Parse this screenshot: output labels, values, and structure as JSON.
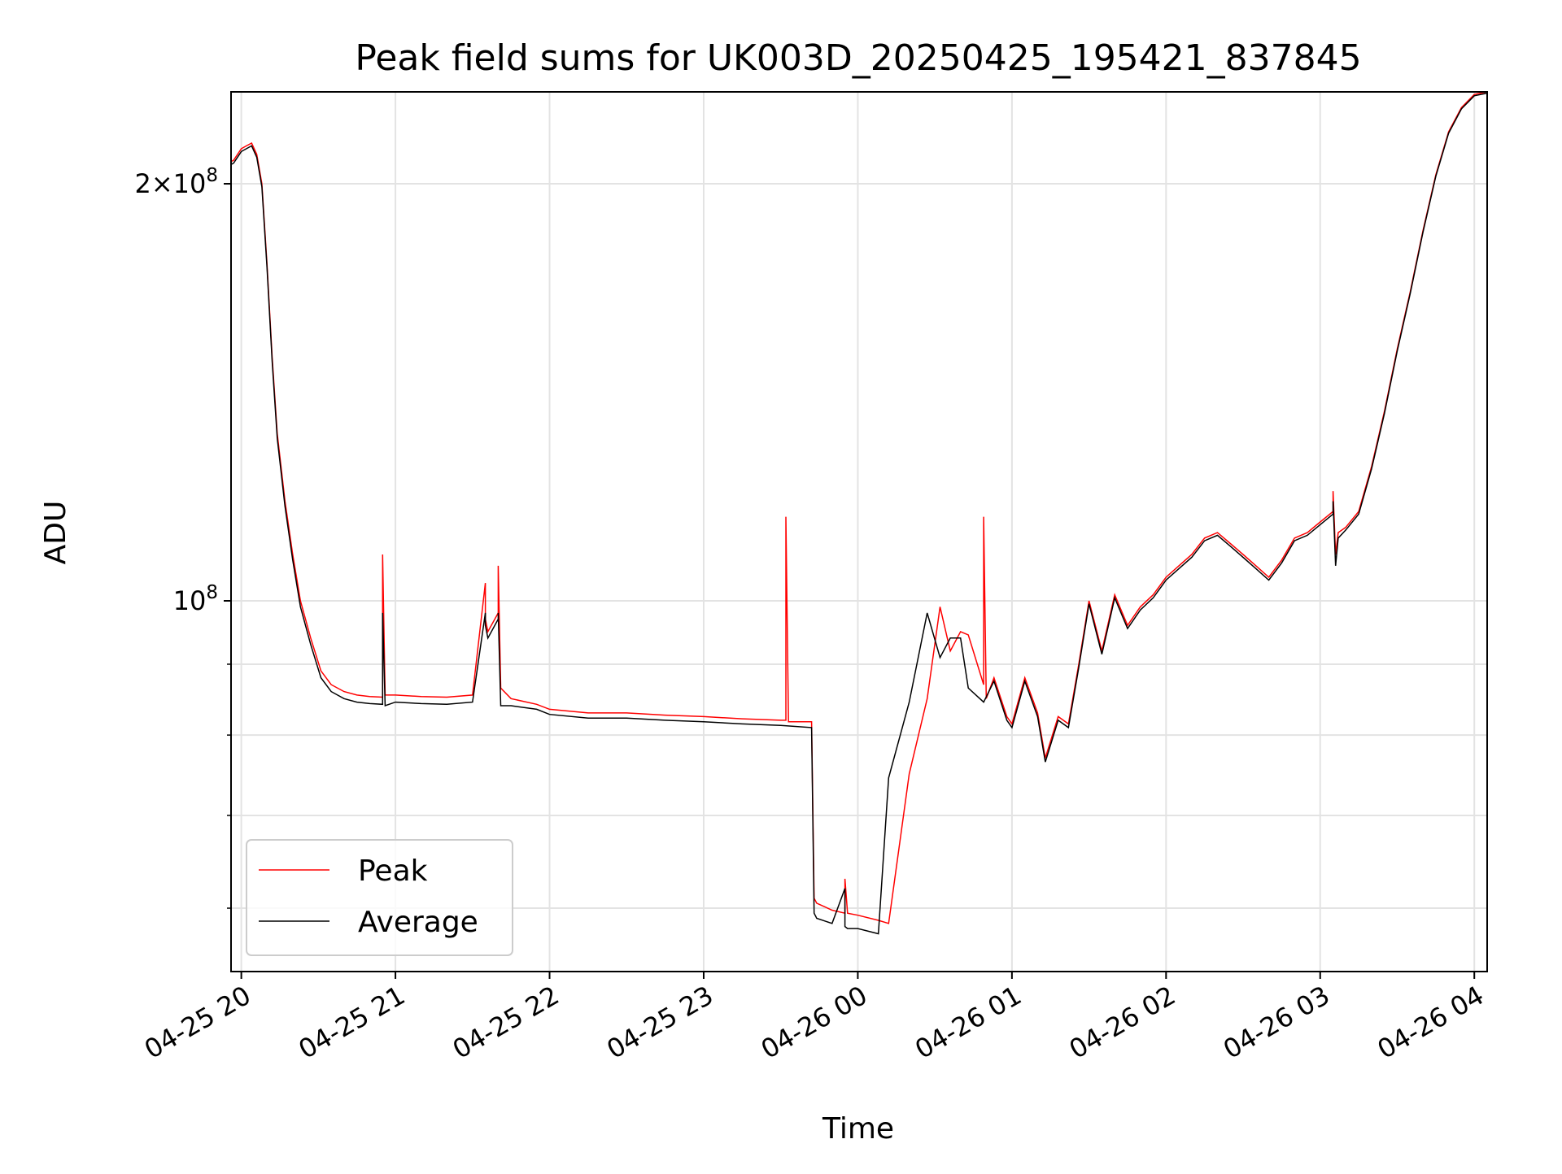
{
  "chart_data": {
    "type": "line",
    "title": "Peak field sums for UK003D_20250425_195421_837845",
    "xlabel": "Time",
    "ylabel": "ADU",
    "x_ticks": [
      "04-25 20",
      "04-25 21",
      "04-25 22",
      "04-25 23",
      "04-26 00",
      "04-26 01",
      "04-26 02",
      "04-26 03",
      "04-26 04"
    ],
    "y_ticks": [
      {
        "value": 100000000,
        "mantissa": "",
        "base": "10",
        "exp": "8"
      },
      {
        "value": 200000000,
        "mantissa": "2×",
        "base": "10",
        "exp": "8"
      }
    ],
    "y_minor_ticks": [
      60000000,
      70000000,
      80000000,
      90000000
    ],
    "xlim": [
      "2025-04-25 19:56",
      "2025-04-26 04:05"
    ],
    "ylim": [
      54000000,
      233000000
    ],
    "yscale": "log",
    "grid": true,
    "legend": {
      "position": "lower-left",
      "entries": [
        "Peak",
        "Average"
      ]
    },
    "series": [
      {
        "name": "Peak",
        "color": "#ff0000",
        "t": [
          "2025-04-25 19:55",
          "2025-04-25 19:57",
          "2025-04-25 20:00",
          "2025-04-25 20:02",
          "2025-04-25 20:04",
          "2025-04-25 20:06",
          "2025-04-25 20:08",
          "2025-04-25 20:10",
          "2025-04-25 20:12",
          "2025-04-25 20:14",
          "2025-04-25 20:17",
          "2025-04-25 20:20",
          "2025-04-25 20:23",
          "2025-04-25 20:27",
          "2025-04-25 20:31",
          "2025-04-25 20:35",
          "2025-04-25 20:40",
          "2025-04-25 20:45",
          "2025-04-25 20:50",
          "2025-04-25 20:55",
          "2025-04-25 20:55",
          "2025-04-25 20:56",
          "2025-04-25 21:00",
          "2025-04-25 21:10",
          "2025-04-25 21:20",
          "2025-04-25 21:30",
          "2025-04-25 21:35",
          "2025-04-25 21:35",
          "2025-04-25 21:36",
          "2025-04-25 21:40",
          "2025-04-25 21:40",
          "2025-04-25 21:41",
          "2025-04-25 21:45",
          "2025-04-25 21:55",
          "2025-04-25 22:00",
          "2025-04-25 22:15",
          "2025-04-25 22:30",
          "2025-04-25 22:45",
          "2025-04-25 23:00",
          "2025-04-25 23:15",
          "2025-04-25 23:30",
          "2025-04-25 23:32",
          "2025-04-25 23:32",
          "2025-04-25 23:33",
          "2025-04-25 23:42",
          "2025-04-25 23:43",
          "2025-04-25 23:44",
          "2025-04-25 23:50",
          "2025-04-25 23:55",
          "2025-04-25 23:55",
          "2025-04-25 23:56",
          "2025-04-26 00:00",
          "2025-04-26 00:08",
          "2025-04-26 00:12",
          "2025-04-26 00:20",
          "2025-04-26 00:27",
          "2025-04-26 00:32",
          "2025-04-26 00:36",
          "2025-04-26 00:40",
          "2025-04-26 00:43",
          "2025-04-26 00:49",
          "2025-04-26 00:49",
          "2025-04-26 00:50",
          "2025-04-26 00:53",
          "2025-04-26 00:58",
          "2025-04-26 01:00",
          "2025-04-26 01:05",
          "2025-04-26 01:10",
          "2025-04-26 01:13",
          "2025-04-26 01:18",
          "2025-04-26 01:22",
          "2025-04-26 01:26",
          "2025-04-26 01:30",
          "2025-04-26 01:35",
          "2025-04-26 01:40",
          "2025-04-26 01:45",
          "2025-04-26 01:50",
          "2025-04-26 01:55",
          "2025-04-26 02:00",
          "2025-04-26 02:05",
          "2025-04-26 02:10",
          "2025-04-26 02:15",
          "2025-04-26 02:20",
          "2025-04-26 02:25",
          "2025-04-26 02:30",
          "2025-04-26 02:35",
          "2025-04-26 02:40",
          "2025-04-26 02:45",
          "2025-04-26 02:50",
          "2025-04-26 02:55",
          "2025-04-26 03:00",
          "2025-04-26 03:05",
          "2025-04-26 03:05",
          "2025-04-26 03:06",
          "2025-04-26 03:07",
          "2025-04-26 03:10",
          "2025-04-26 03:15",
          "2025-04-26 03:20",
          "2025-04-26 03:25",
          "2025-04-26 03:30",
          "2025-04-26 03:35",
          "2025-04-26 03:40",
          "2025-04-26 03:45",
          "2025-04-26 03:50",
          "2025-04-26 03:55",
          "2025-04-26 04:00",
          "2025-04-26 04:05"
        ],
        "values": [
          207000000,
          208000000,
          212000000,
          213000000,
          214000000,
          210000000,
          200000000,
          175000000,
          150000000,
          132000000,
          118000000,
          108000000,
          100000000,
          94000000,
          89000000,
          87000000,
          86000000,
          85500000,
          85300000,
          85200000,
          108000000,
          85500000,
          85500000,
          85300000,
          85200000,
          85500000,
          103000000,
          97000000,
          95000000,
          98000000,
          106000000,
          86500000,
          85000000,
          84200000,
          83500000,
          83000000,
          83000000,
          82700000,
          82500000,
          82200000,
          82000000,
          82000000,
          115000000,
          81800000,
          81800000,
          61000000,
          60500000,
          59800000,
          59500000,
          63000000,
          59500000,
          59300000,
          58800000,
          58500000,
          75000000,
          85000000,
          99000000,
          92000000,
          95000000,
          94500000,
          87000000,
          115000000,
          85000000,
          88000000,
          82500000,
          81500000,
          88000000,
          83000000,
          77000000,
          82500000,
          81500000,
          90000000,
          100000000,
          92000000,
          101000000,
          96000000,
          99000000,
          101000000,
          104000000,
          106000000,
          108000000,
          111000000,
          112000000,
          110000000,
          108000000,
          106000000,
          104000000,
          107000000,
          111000000,
          112000000,
          114000000,
          116000000,
          120000000,
          108000000,
          112000000,
          113000000,
          116000000,
          125000000,
          137000000,
          152000000,
          167000000,
          185000000,
          203000000,
          218000000,
          227000000,
          232000000,
          233000000
        ]
      },
      {
        "name": "Average",
        "color": "#000000",
        "t": [
          "2025-04-25 19:55",
          "2025-04-25 19:57",
          "2025-04-25 20:00",
          "2025-04-25 20:02",
          "2025-04-25 20:04",
          "2025-04-25 20:06",
          "2025-04-25 20:08",
          "2025-04-25 20:10",
          "2025-04-25 20:12",
          "2025-04-25 20:14",
          "2025-04-25 20:17",
          "2025-04-25 20:20",
          "2025-04-25 20:23",
          "2025-04-25 20:27",
          "2025-04-25 20:31",
          "2025-04-25 20:35",
          "2025-04-25 20:40",
          "2025-04-25 20:45",
          "2025-04-25 20:50",
          "2025-04-25 20:55",
          "2025-04-25 20:55",
          "2025-04-25 20:56",
          "2025-04-25 21:00",
          "2025-04-25 21:10",
          "2025-04-25 21:20",
          "2025-04-25 21:30",
          "2025-04-25 21:35",
          "2025-04-25 21:35",
          "2025-04-25 21:36",
          "2025-04-25 21:40",
          "2025-04-25 21:40",
          "2025-04-25 21:41",
          "2025-04-25 21:45",
          "2025-04-25 21:55",
          "2025-04-25 22:00",
          "2025-04-25 22:15",
          "2025-04-25 22:30",
          "2025-04-25 22:45",
          "2025-04-25 23:00",
          "2025-04-25 23:15",
          "2025-04-25 23:30",
          "2025-04-25 23:42",
          "2025-04-25 23:43",
          "2025-04-25 23:44",
          "2025-04-25 23:50",
          "2025-04-25 23:55",
          "2025-04-25 23:55",
          "2025-04-25 23:56",
          "2025-04-26 00:00",
          "2025-04-26 00:08",
          "2025-04-26 00:12",
          "2025-04-26 00:20",
          "2025-04-26 00:27",
          "2025-04-26 00:32",
          "2025-04-26 00:36",
          "2025-04-26 00:40",
          "2025-04-26 00:43",
          "2025-04-26 00:49",
          "2025-04-26 00:53",
          "2025-04-26 00:58",
          "2025-04-26 01:00",
          "2025-04-26 01:05",
          "2025-04-26 01:10",
          "2025-04-26 01:13",
          "2025-04-26 01:18",
          "2025-04-26 01:22",
          "2025-04-26 01:26",
          "2025-04-26 01:30",
          "2025-04-26 01:35",
          "2025-04-26 01:40",
          "2025-04-26 01:45",
          "2025-04-26 01:50",
          "2025-04-26 01:55",
          "2025-04-26 02:00",
          "2025-04-26 02:05",
          "2025-04-26 02:10",
          "2025-04-26 02:15",
          "2025-04-26 02:20",
          "2025-04-26 02:25",
          "2025-04-26 02:30",
          "2025-04-26 02:35",
          "2025-04-26 02:40",
          "2025-04-26 02:45",
          "2025-04-26 02:50",
          "2025-04-26 02:55",
          "2025-04-26 03:00",
          "2025-04-26 03:05",
          "2025-04-26 03:05",
          "2025-04-26 03:06",
          "2025-04-26 03:07",
          "2025-04-26 03:10",
          "2025-04-26 03:15",
          "2025-04-26 03:20",
          "2025-04-26 03:25",
          "2025-04-26 03:30",
          "2025-04-26 03:35",
          "2025-04-26 03:40",
          "2025-04-26 03:45",
          "2025-04-26 03:50",
          "2025-04-26 03:55",
          "2025-04-26 04:00",
          "2025-04-26 04:05"
        ],
        "values": [
          206000000,
          207000000,
          211000000,
          212000000,
          213000000,
          209000000,
          199000000,
          174000000,
          149000000,
          131000000,
          117000000,
          107000000,
          99000000,
          93000000,
          88000000,
          86000000,
          85000000,
          84500000,
          84300000,
          84200000,
          98000000,
          84000000,
          84500000,
          84300000,
          84200000,
          84500000,
          98000000,
          96000000,
          94000000,
          97000000,
          98000000,
          84000000,
          84000000,
          83500000,
          82800000,
          82300000,
          82300000,
          82000000,
          81800000,
          81500000,
          81300000,
          81000000,
          59500000,
          59000000,
          58500000,
          62000000,
          58200000,
          58000000,
          58000000,
          57500000,
          74500000,
          84500000,
          98000000,
          91000000,
          94000000,
          94000000,
          86500000,
          84500000,
          87500000,
          82000000,
          81000000,
          87500000,
          82500000,
          76500000,
          82000000,
          81000000,
          89500000,
          99500000,
          91500000,
          100500000,
          95500000,
          98500000,
          100500000,
          103500000,
          105500000,
          107500000,
          110500000,
          111500000,
          109500000,
          107500000,
          105500000,
          103500000,
          106500000,
          110500000,
          111500000,
          113500000,
          115500000,
          118000000,
          106000000,
          111000000,
          112500000,
          115500000,
          124500000,
          136500000,
          151500000,
          166500000,
          184500000,
          202500000,
          217500000,
          226500000,
          231500000,
          232500000
        ]
      }
    ]
  }
}
